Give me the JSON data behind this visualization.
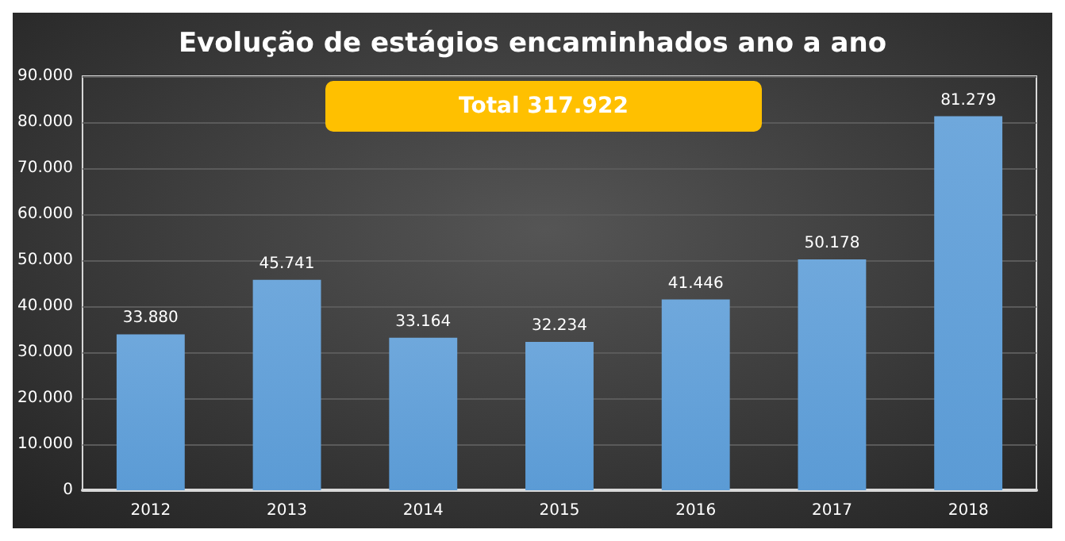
{
  "chart_data": {
    "type": "bar",
    "title": "Evolução de estágios encaminhados ano a ano",
    "categories": [
      "2012",
      "2013",
      "2014",
      "2015",
      "2016",
      "2017",
      "2018"
    ],
    "values": [
      33880,
      45741,
      33164,
      32234,
      41446,
      50178,
      81279
    ],
    "value_labels": [
      "33.880",
      "45.741",
      "33.164",
      "32.234",
      "41.446",
      "50.178",
      "81.279"
    ],
    "color": "#5b9bd5",
    "ylim": [
      0,
      90000
    ],
    "yticks": [
      {
        "value": 0,
        "label": "0"
      },
      {
        "value": 10000,
        "label": "10.000"
      },
      {
        "value": 20000,
        "label": "20.000"
      },
      {
        "value": 30000,
        "label": "30.000"
      },
      {
        "value": 40000,
        "label": "40.000"
      },
      {
        "value": 50000,
        "label": "50.000"
      },
      {
        "value": 60000,
        "label": "60.000"
      },
      {
        "value": 70000,
        "label": "70.000"
      },
      {
        "value": 80000,
        "label": "80.000"
      },
      {
        "value": 90000,
        "label": "90.000"
      }
    ],
    "grid": "y",
    "annotations": [
      "Total 317.922"
    ]
  }
}
